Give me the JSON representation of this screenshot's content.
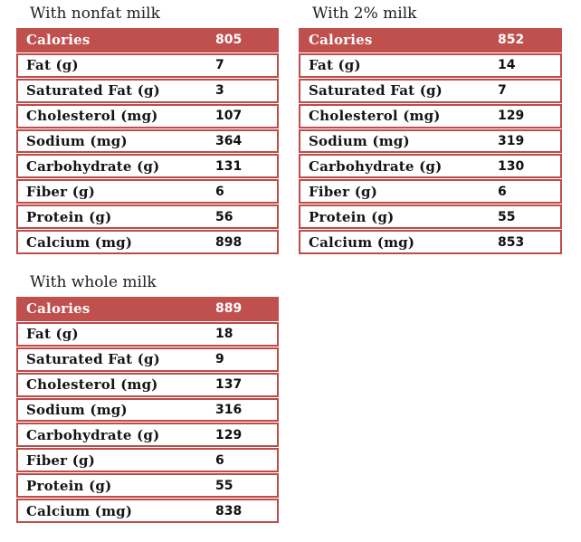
{
  "colors": {
    "accent_red": "#c0504d",
    "border_red": "#be4b48",
    "header_text": "#ffffff",
    "body_text": "#141414",
    "background": "#ffffff"
  },
  "tables": [
    {
      "title": "With nonfat milk",
      "rows": [
        {
          "label": "Calories",
          "value": "805"
        },
        {
          "label": "Fat (g)",
          "value": "7"
        },
        {
          "label": "Saturated Fat (g)",
          "value": "3"
        },
        {
          "label": "Cholesterol (mg)",
          "value": "107"
        },
        {
          "label": "Sodium (mg)",
          "value": "364"
        },
        {
          "label": "Carbohydrate (g)",
          "value": "131"
        },
        {
          "label": "Fiber (g)",
          "value": "6"
        },
        {
          "label": "Protein (g)",
          "value": "56"
        },
        {
          "label": "Calcium (mg)",
          "value": "898"
        }
      ]
    },
    {
      "title": "With 2% milk",
      "rows": [
        {
          "label": "Calories",
          "value": "852"
        },
        {
          "label": "Fat (g)",
          "value": "14"
        },
        {
          "label": "Saturated Fat (g)",
          "value": "7"
        },
        {
          "label": "Cholesterol (mg)",
          "value": "129"
        },
        {
          "label": "Sodium (mg)",
          "value": "319"
        },
        {
          "label": "Carbohydrate (g)",
          "value": "130"
        },
        {
          "label": "Fiber (g)",
          "value": "6"
        },
        {
          "label": "Protein (g)",
          "value": "55"
        },
        {
          "label": "Calcium (mg)",
          "value": "853"
        }
      ]
    },
    {
      "title": "With whole milk",
      "rows": [
        {
          "label": "Calories",
          "value": "889"
        },
        {
          "label": "Fat (g)",
          "value": "18"
        },
        {
          "label": "Saturated Fat (g)",
          "value": "9"
        },
        {
          "label": "Cholesterol (mg)",
          "value": "137"
        },
        {
          "label": "Sodium (mg)",
          "value": "316"
        },
        {
          "label": "Carbohydrate (g)",
          "value": "129"
        },
        {
          "label": "Fiber (g)",
          "value": "6"
        },
        {
          "label": "Protein (g)",
          "value": "55"
        },
        {
          "label": "Calcium (mg)",
          "value": "838"
        }
      ]
    }
  ]
}
